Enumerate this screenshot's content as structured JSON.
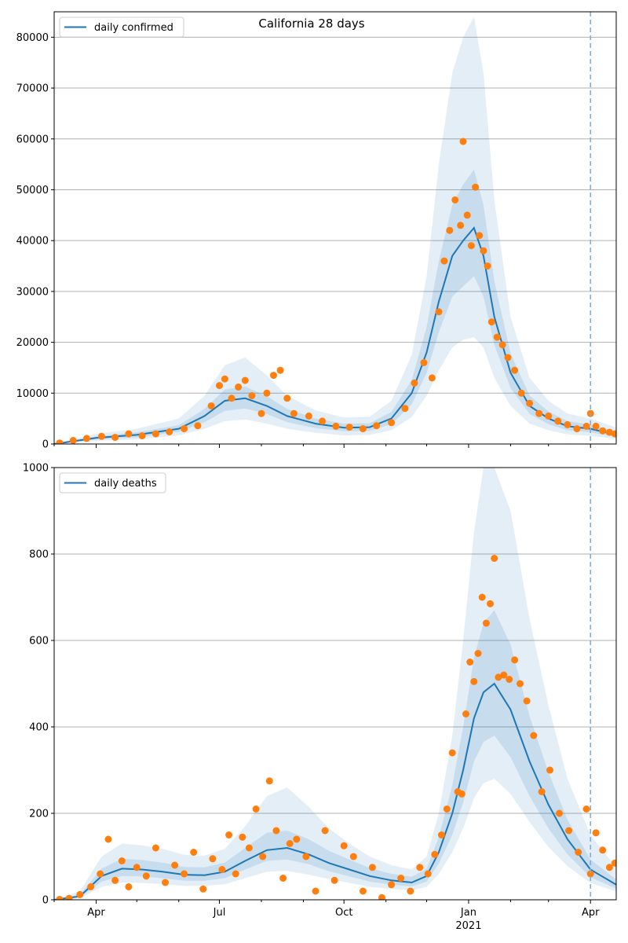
{
  "figure": {
    "title": "California 28 days"
  },
  "colors": {
    "line": "#1f77b4",
    "band": "#1f77b4",
    "points": "#ff7f0e",
    "grid": "#b0b0b0",
    "vline": "#7fb1d4"
  },
  "chart_data": [
    {
      "type": "line",
      "legend": {
        "label": "daily confirmed",
        "placement": "top-left"
      },
      "title": "California 28 days",
      "xlim": [
        "2020-03-01",
        "2021-04-20"
      ],
      "ylim": [
        0,
        85000
      ],
      "y_ticks": [
        0,
        10000,
        20000,
        30000,
        40000,
        50000,
        60000,
        70000,
        80000
      ],
      "y_tick_labels": [
        "0",
        "10000",
        "20000",
        "30000",
        "40000",
        "50000",
        "60000",
        "70000",
        "80000"
      ],
      "grid": "horizontal",
      "vline": "2021-04-01",
      "x": [
        "2020-03-01",
        "2020-04-01",
        "2020-05-01",
        "2020-06-01",
        "2020-06-20",
        "2020-07-05",
        "2020-07-20",
        "2020-08-05",
        "2020-08-20",
        "2020-09-10",
        "2020-10-01",
        "2020-10-20",
        "2020-11-05",
        "2020-11-20",
        "2020-12-01",
        "2020-12-10",
        "2020-12-20",
        "2020-12-28",
        "2021-01-05",
        "2021-01-12",
        "2021-01-20",
        "2021-02-01",
        "2021-02-15",
        "2021-03-01",
        "2021-03-15",
        "2021-04-01",
        "2021-04-20"
      ],
      "y": [
        0,
        1200,
        1800,
        3000,
        5500,
        8500,
        9000,
        7500,
        5500,
        4000,
        3200,
        3300,
        5000,
        10000,
        18000,
        28000,
        37000,
        40000,
        42500,
        37000,
        25000,
        14000,
        7500,
        5000,
        3500,
        3000,
        1800
      ],
      "band_inner": {
        "lower": [
          0,
          900,
          1300,
          2400,
          4300,
          6500,
          7000,
          5900,
          4300,
          3100,
          2500,
          2600,
          3900,
          7800,
          14000,
          22000,
          29000,
          31000,
          33000,
          29000,
          19500,
          11000,
          5900,
          3900,
          2700,
          2300,
          1400
        ],
        "upper": [
          0,
          1500,
          2300,
          3700,
          6900,
          10700,
          11300,
          9400,
          6900,
          5000,
          4000,
          4100,
          6300,
          12600,
          23000,
          36000,
          47000,
          51000,
          54000,
          47000,
          32000,
          17800,
          9500,
          6400,
          4500,
          3800,
          2300
        ]
      },
      "band_outer": {
        "lower": [
          0,
          600,
          900,
          1700,
          3000,
          4500,
          4800,
          4000,
          3000,
          2200,
          1700,
          1800,
          2700,
          5300,
          9500,
          14500,
          19000,
          20500,
          21000,
          19000,
          13000,
          7500,
          4000,
          2700,
          1900,
          1600,
          1000
        ],
        "upper": [
          0,
          2000,
          3000,
          5000,
          9500,
          15500,
          17000,
          13500,
          9500,
          6600,
          5200,
          5400,
          8500,
          17500,
          33000,
          55000,
          73000,
          80000,
          84000,
          73000,
          48000,
          25000,
          13000,
          8500,
          6000,
          5000,
          3200
        ]
      },
      "observed": {
        "x": [
          "2020-03-05",
          "2020-03-15",
          "2020-03-25",
          "2020-04-05",
          "2020-04-15",
          "2020-04-25",
          "2020-05-05",
          "2020-05-15",
          "2020-05-25",
          "2020-06-05",
          "2020-06-15",
          "2020-06-25",
          "2020-07-01",
          "2020-07-05",
          "2020-07-10",
          "2020-07-15",
          "2020-07-20",
          "2020-07-25",
          "2020-08-01",
          "2020-08-05",
          "2020-08-10",
          "2020-08-15",
          "2020-08-20",
          "2020-08-25",
          "2020-09-05",
          "2020-09-15",
          "2020-09-25",
          "2020-10-05",
          "2020-10-15",
          "2020-10-25",
          "2020-11-05",
          "2020-11-15",
          "2020-11-22",
          "2020-11-29",
          "2020-12-05",
          "2020-12-10",
          "2020-12-14",
          "2020-12-18",
          "2020-12-22",
          "2020-12-26",
          "2020-12-28",
          "2020-12-31",
          "2021-01-03",
          "2021-01-06",
          "2021-01-09",
          "2021-01-12",
          "2021-01-15",
          "2021-01-18",
          "2021-01-22",
          "2021-01-26",
          "2021-01-30",
          "2021-02-04",
          "2021-02-09",
          "2021-02-15",
          "2021-02-22",
          "2021-03-01",
          "2021-03-08",
          "2021-03-15",
          "2021-03-22",
          "2021-03-29",
          "2021-04-01",
          "2021-04-05",
          "2021-04-10",
          "2021-04-15",
          "2021-04-19"
        ],
        "y": [
          200,
          700,
          1100,
          1500,
          1300,
          2000,
          1600,
          2000,
          2400,
          3000,
          3600,
          7500,
          11500,
          12800,
          9000,
          11200,
          12500,
          9500,
          6000,
          10000,
          13500,
          14500,
          9000,
          6000,
          5500,
          4500,
          3500,
          3300,
          3000,
          3600,
          4200,
          7000,
          12000,
          16000,
          13000,
          26000,
          36000,
          42000,
          48000,
          43000,
          59500,
          45000,
          39000,
          50500,
          41000,
          38000,
          35000,
          24000,
          21000,
          19500,
          17000,
          14500,
          10000,
          8000,
          6000,
          5500,
          4500,
          3800,
          3000,
          3500,
          6000,
          3500,
          2600,
          2300,
          2000
        ]
      }
    },
    {
      "type": "line",
      "legend": {
        "label": "daily deaths",
        "placement": "top-left"
      },
      "xlim": [
        "2020-03-01",
        "2021-04-20"
      ],
      "ylim": [
        0,
        1000
      ],
      "y_ticks": [
        0,
        200,
        400,
        600,
        800,
        1000
      ],
      "y_tick_labels": [
        "0",
        "200",
        "400",
        "600",
        "800",
        "1000"
      ],
      "x_ticks": [
        "2020-04-01",
        "2020-07-01",
        "2020-10-01",
        "2021-01-01",
        "2021-04-01"
      ],
      "x_tick_labels": [
        "Apr",
        "Jul",
        "Oct",
        "Jan",
        "Apr"
      ],
      "x_year_label": {
        "date": "2021-01-01",
        "text": "2021"
      },
      "grid": "horizontal",
      "vline": "2021-04-01",
      "x": [
        "2020-03-01",
        "2020-03-20",
        "2020-04-05",
        "2020-04-20",
        "2020-05-05",
        "2020-05-20",
        "2020-06-05",
        "2020-06-20",
        "2020-07-05",
        "2020-07-20",
        "2020-08-05",
        "2020-08-20",
        "2020-09-05",
        "2020-09-20",
        "2020-10-05",
        "2020-10-20",
        "2020-11-05",
        "2020-11-20",
        "2020-12-01",
        "2020-12-10",
        "2020-12-20",
        "2020-12-28",
        "2021-01-05",
        "2021-01-12",
        "2021-01-20",
        "2021-02-01",
        "2021-02-15",
        "2021-03-01",
        "2021-03-15",
        "2021-04-01",
        "2021-04-20"
      ],
      "y": [
        0,
        8,
        55,
        72,
        70,
        65,
        58,
        57,
        65,
        90,
        115,
        120,
        105,
        85,
        70,
        55,
        45,
        40,
        55,
        110,
        200,
        300,
        420,
        480,
        500,
        440,
        320,
        220,
        140,
        70,
        35
      ],
      "band_inner": {
        "lower": [
          0,
          5,
          42,
          55,
          54,
          50,
          44,
          44,
          50,
          70,
          90,
          93,
          82,
          66,
          54,
          42,
          35,
          31,
          42,
          84,
          150,
          225,
          320,
          365,
          380,
          330,
          240,
          165,
          105,
          52,
          26
        ],
        "upper": [
          0,
          12,
          72,
          95,
          92,
          86,
          76,
          75,
          86,
          120,
          155,
          160,
          140,
          113,
          93,
          73,
          60,
          53,
          72,
          145,
          265,
          400,
          560,
          640,
          670,
          590,
          425,
          295,
          185,
          93,
          47
        ]
      },
      "band_outer": {
        "lower": [
          0,
          3,
          30,
          40,
          39,
          36,
          32,
          32,
          36,
          50,
          65,
          67,
          58,
          48,
          39,
          30,
          25,
          22,
          30,
          60,
          110,
          165,
          235,
          270,
          280,
          245,
          180,
          122,
          78,
          39,
          19
        ],
        "upper": [
          0,
          20,
          100,
          130,
          126,
          118,
          104,
          102,
          118,
          170,
          240,
          260,
          215,
          165,
          130,
          100,
          80,
          70,
          100,
          200,
          380,
          600,
          850,
          1000,
          1000,
          900,
          650,
          450,
          280,
          150,
          75
        ]
      },
      "observed": {
        "x": [
          "2020-03-05",
          "2020-03-12",
          "2020-03-20",
          "2020-03-28",
          "2020-04-04",
          "2020-04-10",
          "2020-04-15",
          "2020-04-20",
          "2020-04-25",
          "2020-05-01",
          "2020-05-08",
          "2020-05-15",
          "2020-05-22",
          "2020-05-29",
          "2020-06-05",
          "2020-06-12",
          "2020-06-19",
          "2020-06-26",
          "2020-07-03",
          "2020-07-08",
          "2020-07-13",
          "2020-07-18",
          "2020-07-23",
          "2020-07-28",
          "2020-08-02",
          "2020-08-07",
          "2020-08-12",
          "2020-08-17",
          "2020-08-22",
          "2020-08-27",
          "2020-09-03",
          "2020-09-10",
          "2020-09-17",
          "2020-09-24",
          "2020-10-01",
          "2020-10-08",
          "2020-10-15",
          "2020-10-22",
          "2020-10-29",
          "2020-11-05",
          "2020-11-12",
          "2020-11-19",
          "2020-11-26",
          "2020-12-02",
          "2020-12-07",
          "2020-12-12",
          "2020-12-16",
          "2020-12-20",
          "2020-12-24",
          "2020-12-27",
          "2020-12-30",
          "2021-01-02",
          "2021-01-05",
          "2021-01-08",
          "2021-01-11",
          "2021-01-14",
          "2021-01-17",
          "2021-01-20",
          "2021-01-23",
          "2021-01-27",
          "2021-01-31",
          "2021-02-04",
          "2021-02-08",
          "2021-02-13",
          "2021-02-18",
          "2021-02-24",
          "2021-03-02",
          "2021-03-09",
          "2021-03-16",
          "2021-03-23",
          "2021-03-29",
          "2021-04-01",
          "2021-04-05",
          "2021-04-10",
          "2021-04-15",
          "2021-04-19"
        ],
        "y": [
          1,
          3,
          12,
          30,
          60,
          140,
          45,
          90,
          30,
          75,
          55,
          120,
          40,
          80,
          60,
          110,
          25,
          95,
          70,
          150,
          60,
          145,
          120,
          210,
          100,
          275,
          160,
          50,
          130,
          140,
          100,
          20,
          160,
          45,
          125,
          100,
          20,
          75,
          5,
          35,
          50,
          20,
          75,
          60,
          105,
          150,
          210,
          340,
          250,
          245,
          430,
          550,
          505,
          570,
          700,
          640,
          685,
          790,
          515,
          520,
          510,
          555,
          500,
          460,
          380,
          250,
          300,
          200,
          160,
          110,
          210,
          60,
          155,
          115,
          75,
          85
        ]
      }
    }
  ]
}
